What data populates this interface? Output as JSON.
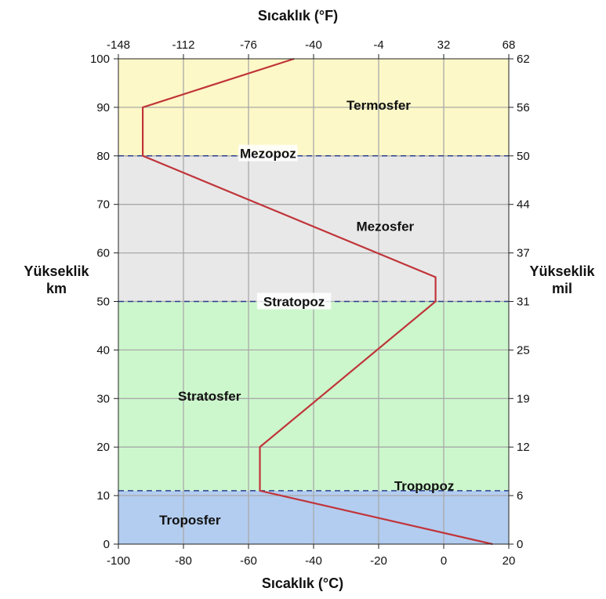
{
  "chart_data": {
    "type": "line",
    "title_top": "Sıcaklık (°F)",
    "xlabel": "Sıcaklık (°C)",
    "ylabel_left": [
      "Yükseklik",
      "km"
    ],
    "ylabel_right": [
      "Yükseklik",
      "mil"
    ],
    "xlim": [
      -100,
      20
    ],
    "ylim": [
      0,
      100
    ],
    "x_ticks": [
      "-100",
      "-80",
      "-60",
      "-40",
      "-20",
      "0",
      "20"
    ],
    "x_tick_values": [
      -100,
      -80,
      -60,
      -40,
      -20,
      0,
      20
    ],
    "x_ticks_top": [
      "-148",
      "-112",
      "-76",
      "-40",
      "-4",
      "32",
      "68"
    ],
    "y_ticks_left": [
      "0",
      "10",
      "20",
      "30",
      "40",
      "50",
      "60",
      "70",
      "80",
      "90",
      "100"
    ],
    "y_tick_values": [
      0,
      10,
      20,
      30,
      40,
      50,
      60,
      70,
      80,
      90,
      100
    ],
    "y_ticks_right": [
      "0",
      "6",
      "12",
      "19",
      "25",
      "31",
      "37",
      "44",
      "50",
      "56",
      "62"
    ],
    "grid": true,
    "series": [
      {
        "points": [
          {
            "x": 15,
            "y": 0
          },
          {
            "x": -56.5,
            "y": 11
          },
          {
            "x": -56.5,
            "y": 20
          },
          {
            "x": -2.5,
            "y": 50
          },
          {
            "x": -2.5,
            "y": 55
          },
          {
            "x": -92.5,
            "y": 80
          },
          {
            "x": -92.5,
            "y": 90
          },
          {
            "x": -46,
            "y": 100
          }
        ],
        "color": "#c0353a"
      }
    ],
    "layers": [
      {
        "name": "Troposfer",
        "y_from": 0,
        "y_to": 11,
        "color": "#b3cdf0",
        "label_x": -78,
        "label_y": 5
      },
      {
        "name": "Stratosfer",
        "y_from": 11,
        "y_to": 50,
        "color": "#ccf7cc",
        "label_x": -72,
        "label_y": 30.5
      },
      {
        "name": "Mezosfer",
        "y_from": 50,
        "y_to": 80,
        "color": "#e8e8e8",
        "label_x": -18,
        "label_y": 65.5
      },
      {
        "name": "Termosfer",
        "y_from": 80,
        "y_to": 100,
        "color": "#fdf8c7",
        "label_x": -20,
        "label_y": 90.5
      }
    ],
    "boundaries": [
      {
        "name": "Tropopoz",
        "y": 11,
        "label_x": -6,
        "label_y": 12
      },
      {
        "name": "Stratopoz",
        "y": 50,
        "label_x": -46,
        "label_y": 50
      },
      {
        "name": "Mezopoz",
        "y": 80,
        "label_x": -54,
        "label_y": 80.5
      }
    ]
  }
}
